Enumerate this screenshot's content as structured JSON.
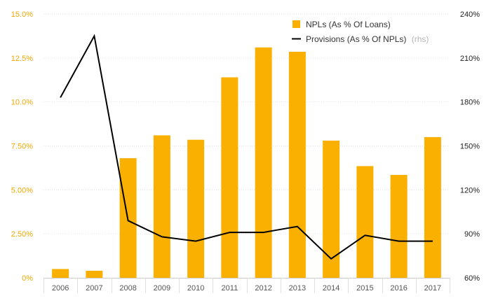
{
  "chart_data": {
    "type": "bar",
    "categories": [
      "2006",
      "2007",
      "2008",
      "2009",
      "2010",
      "2011",
      "2012",
      "2013",
      "2014",
      "2015",
      "2016",
      "2017"
    ],
    "series": [
      {
        "name": "NPLs (As % Of Loans)",
        "type": "bar",
        "axis": "left",
        "color": "#f9b000",
        "values": [
          0.5,
          0.4,
          6.8,
          8.1,
          7.85,
          11.4,
          13.1,
          12.85,
          7.8,
          6.35,
          5.85,
          8.0
        ]
      },
      {
        "name": "Provisions (As % Of NPLs)",
        "name_suffix": "(rhs)",
        "type": "line",
        "axis": "right",
        "color": "#000000",
        "values": [
          183,
          225,
          99,
          88,
          85,
          91,
          91,
          95,
          73,
          89,
          85,
          85
        ]
      }
    ],
    "yleft": {
      "lim": [
        0,
        15
      ],
      "ticks": [
        0,
        2.5,
        5,
        7.5,
        10,
        12.5,
        15
      ],
      "tick_labels": [
        "0%",
        "2.50%",
        "5.00%",
        "7.50%",
        "10.0%",
        "12.5%",
        "15.0%"
      ]
    },
    "yright": {
      "lim": [
        60,
        240
      ],
      "ticks": [
        60,
        90,
        120,
        150,
        180,
        210,
        240
      ],
      "tick_labels": [
        "60%",
        "90%",
        "120%",
        "150%",
        "180%",
        "210%",
        "240%"
      ]
    },
    "legend_position": "top-right",
    "grid": true
  }
}
